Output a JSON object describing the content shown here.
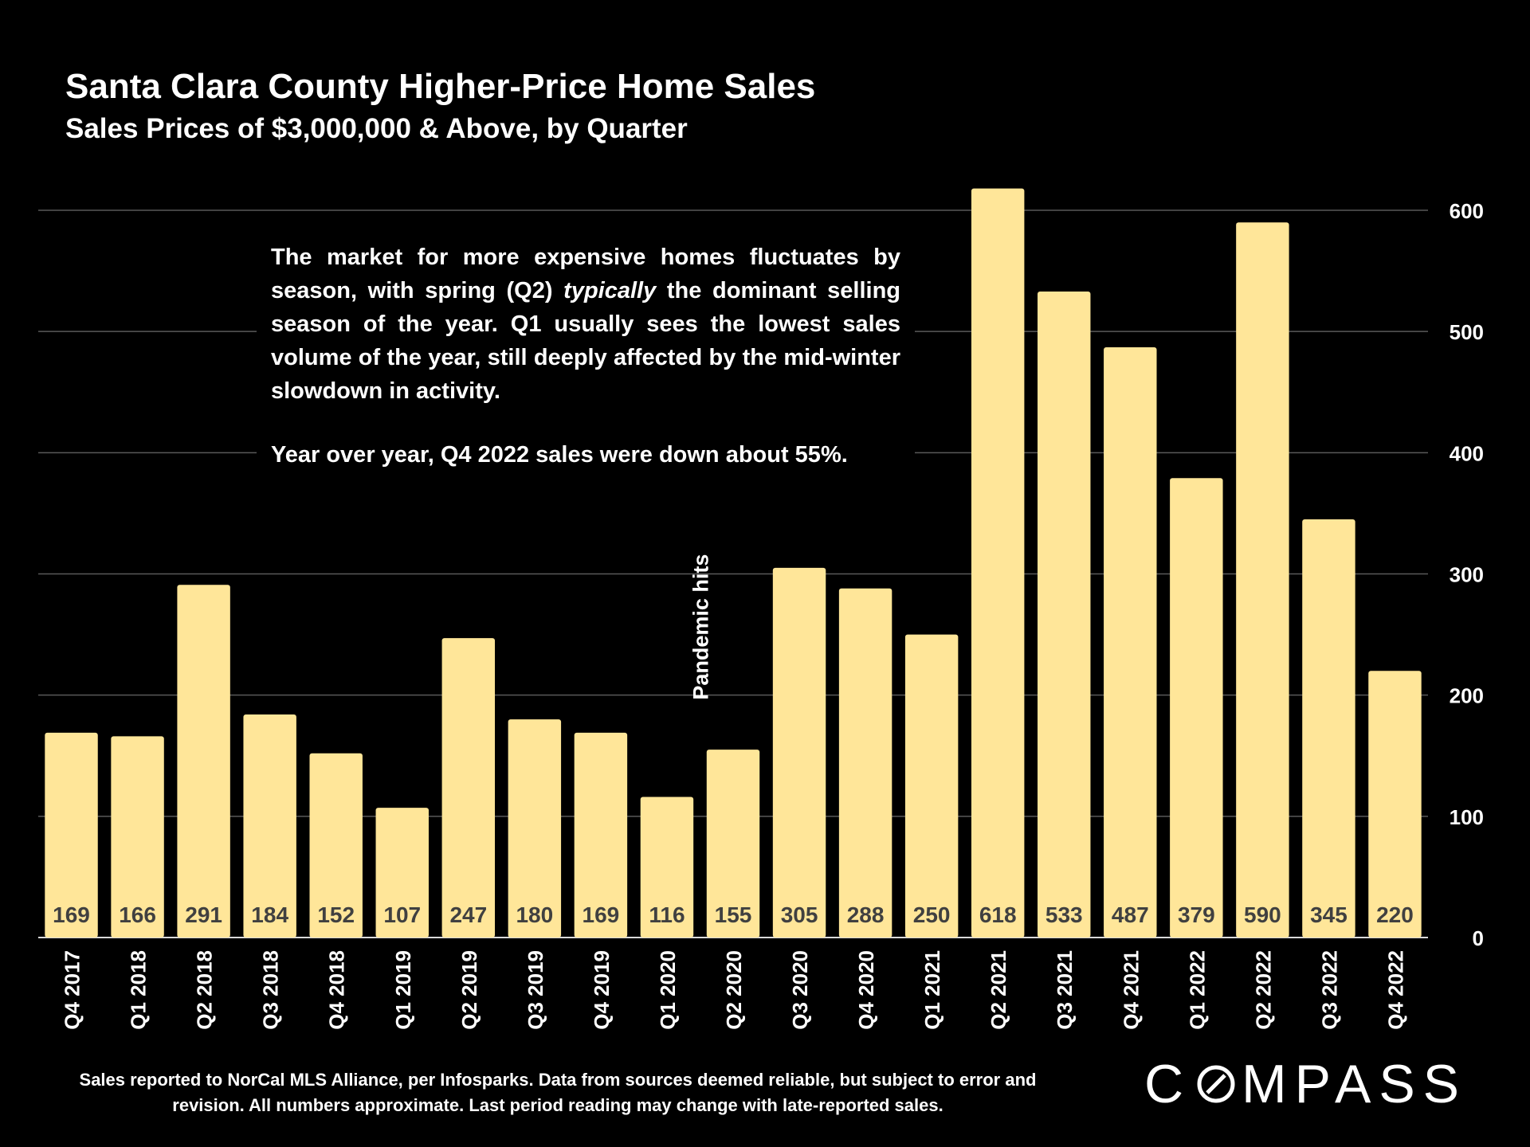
{
  "header": {
    "title": "Santa Clara County Higher-Price Home Sales",
    "subtitle": "Sales Prices of $3,000,000 & Above, by Quarter"
  },
  "annotation": {
    "paragraph1_a": "The market for more expensive homes fluctuates by season, with spring (Q2) ",
    "paragraph1_em": "typically",
    "paragraph1_b": " the dominant selling season of the year. Q1 usually sees the lowest sales volume of the year, still deeply affected by the mid-winter slowdown in activity.",
    "paragraph2": "Year over year, Q4 2022 sales were down about 55%."
  },
  "pandemic_label": "Pandemic hits",
  "footnote": "Sales reported to NorCal MLS Alliance, per Infosparks. Data from sources deemed reliable, but subject to error and revision. All numbers approximate. Last period reading may change with late-reported sales.",
  "logo": {
    "prefix": "C",
    "suffix": "MPASS"
  },
  "colors": {
    "background": "#000000",
    "bar": "#FFE699",
    "bar_label": "#404040",
    "gridline": "#595959",
    "text": "#FFFFFF"
  },
  "chart_data": {
    "type": "bar",
    "title": "Santa Clara County Higher-Price Home Sales",
    "subtitle": "Sales Prices of $3,000,000 & Above, by Quarter",
    "categories": [
      "Q4 2017",
      "Q1 2018",
      "Q2 2018",
      "Q3 2018",
      "Q4 2018",
      "Q1 2019",
      "Q2 2019",
      "Q3 2019",
      "Q4 2019",
      "Q1 2020",
      "Q2 2020",
      "Q3 2020",
      "Q4 2020",
      "Q1 2021",
      "Q2 2021",
      "Q3 2021",
      "Q4 2021",
      "Q1 2022",
      "Q2 2022",
      "Q3 2022",
      "Q4 2022"
    ],
    "values": [
      169,
      166,
      291,
      184,
      152,
      107,
      247,
      180,
      169,
      116,
      155,
      305,
      288,
      250,
      618,
      533,
      487,
      379,
      590,
      345,
      220
    ],
    "data_labels": [
      "169",
      "166",
      "291",
      "184",
      "152",
      "107",
      "247",
      "180",
      "169",
      "116",
      "155",
      "305",
      "288",
      "250",
      "618",
      "533",
      "487",
      "379",
      "590",
      "345",
      "220"
    ],
    "ylim": [
      0,
      600
    ],
    "yticks": [
      0,
      100,
      200,
      300,
      400,
      500,
      600
    ],
    "ytick_labels": [
      "0",
      "100",
      "200",
      "300",
      "400",
      "500",
      "600"
    ],
    "y_axis_side": "right",
    "grid": true,
    "xlabel": "",
    "ylabel": "",
    "annotation_between": [
      "Q1 2020",
      "Q2 2020"
    ]
  }
}
